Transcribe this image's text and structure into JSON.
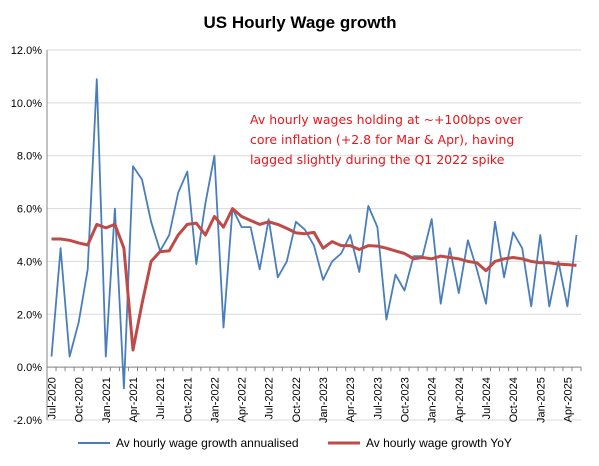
{
  "chart_data": {
    "type": "line",
    "title": "US Hourly Wage growth",
    "xlabel": "",
    "ylabel": "",
    "ylim": [
      -0.02,
      0.12
    ],
    "y_ticks": [
      "-2.0%",
      "0.0%",
      "2.0%",
      "4.0%",
      "6.0%",
      "8.0%",
      "10.0%",
      "12.0%"
    ],
    "x_tick_labels": [
      "Jul-2020",
      "Oct-2020",
      "Jan-2021",
      "Apr-2021",
      "Jul-2021",
      "Oct-2021",
      "Jan-2022",
      "Apr-2022",
      "Jul-2022",
      "Oct-2022",
      "Jan-2023",
      "Apr-2023",
      "Jul-2023",
      "Oct-2023",
      "Jan-2024",
      "Apr-2024",
      "Jul-2024",
      "Oct-2024",
      "Jan-2025",
      "Apr-2025"
    ],
    "x_start": "Jul-2020",
    "grid": "horizontal",
    "legend_position": "bottom",
    "colors": {
      "annualised": "#4a7ebb",
      "yoy": "#be4b48",
      "annotation": "#e8151b"
    },
    "annotation": [
      "Av hourly wages holding at ~+100bps over",
      "core inflation (+2.8 for Mar & Apr), having",
      "lagged slightly during the Q1 2022 spike"
    ],
    "series": [
      {
        "name": "Av hourly wage growth annualised",
        "values": [
          0.004,
          0.045,
          0.004,
          0.017,
          0.037,
          0.109,
          0.004,
          0.06,
          -0.008,
          0.076,
          0.071,
          0.055,
          0.044,
          0.05,
          0.066,
          0.074,
          0.039,
          0.062,
          0.08,
          0.015,
          0.06,
          0.053,
          0.053,
          0.037,
          0.056,
          0.034,
          0.04,
          0.055,
          0.052,
          0.046,
          0.033,
          0.04,
          0.043,
          0.05,
          0.036,
          0.061,
          0.053,
          0.018,
          0.035,
          0.029,
          0.042,
          0.042,
          0.056,
          0.024,
          0.045,
          0.028,
          0.048,
          0.037,
          0.024,
          0.055,
          0.034,
          0.051,
          0.045,
          0.023,
          0.05,
          0.023,
          0.04,
          0.023,
          0.05
        ]
      },
      {
        "name": "Av hourly wage growth YoY",
        "values": [
          0.0485,
          0.0485,
          0.048,
          0.047,
          0.0462,
          0.054,
          0.0527,
          0.054,
          0.045,
          0.0065,
          0.024,
          0.04,
          0.0437,
          0.044,
          0.05,
          0.054,
          0.0545,
          0.05,
          0.057,
          0.053,
          0.06,
          0.057,
          0.0555,
          0.054,
          0.055,
          0.054,
          0.0525,
          0.0508,
          0.0505,
          0.051,
          0.045,
          0.0475,
          0.046,
          0.046,
          0.0445,
          0.046,
          0.0458,
          0.045,
          0.044,
          0.043,
          0.041,
          0.0415,
          0.041,
          0.042,
          0.0415,
          0.041,
          0.04,
          0.0395,
          0.0365,
          0.04,
          0.041,
          0.0415,
          0.041,
          0.04,
          0.0395,
          0.0395,
          0.039,
          0.0388,
          0.0385
        ]
      }
    ]
  }
}
